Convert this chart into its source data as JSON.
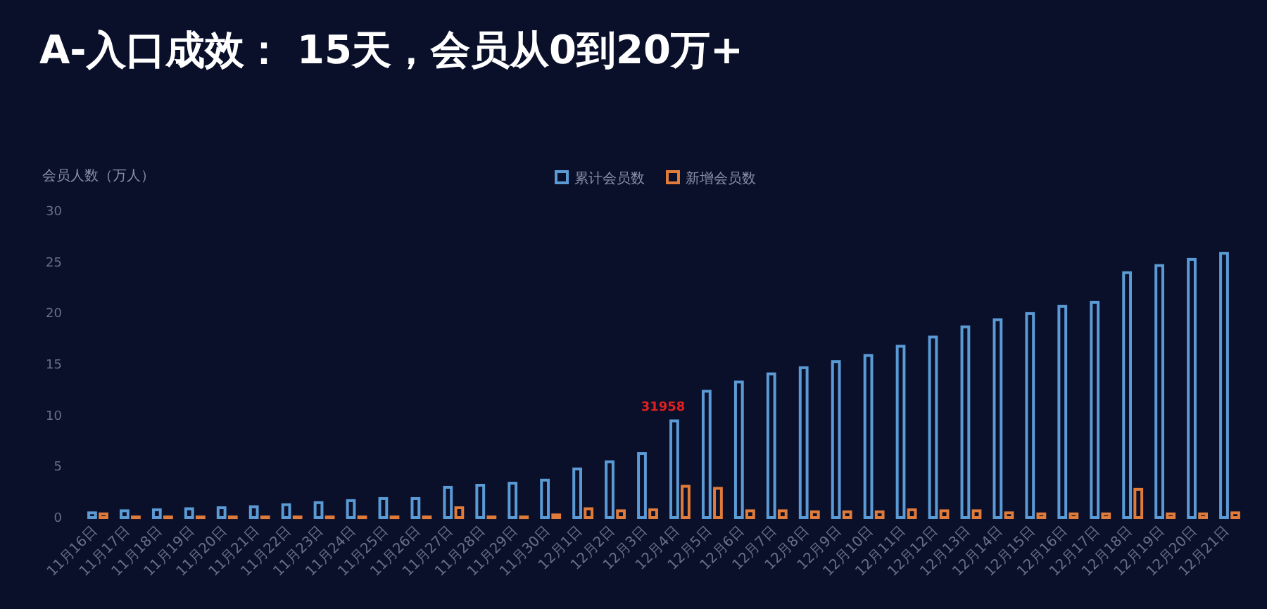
{
  "chart_data": {
    "type": "bar",
    "title": "A-入口成效： 15天，会员从0到20万+",
    "ylabel": "会员人数（万人）",
    "categories": [
      "11月16日",
      "11月17日",
      "11月18日",
      "11月19日",
      "11月20日",
      "11月21日",
      "11月22日",
      "11月23日",
      "11月24日",
      "11月25日",
      "11月26日",
      "11月27日",
      "11月28日",
      "11月29日",
      "11月30日",
      "12月1日",
      "12月2日",
      "12月3日",
      "12月4日",
      "12月5日",
      "12月6日",
      "12月7日",
      "12月8日",
      "12月9日",
      "12月10日",
      "12月11日",
      "12月12日",
      "12月13日",
      "12月14日",
      "12月15日",
      "12月16日",
      "12月17日",
      "12月18日",
      "12月19日",
      "12月20日",
      "12月21日"
    ],
    "series": [
      {
        "name": "累计会员数",
        "color": "#5b9bd5",
        "values": [
          0.6,
          0.8,
          0.9,
          1.0,
          1.1,
          1.2,
          1.4,
          1.6,
          1.8,
          2.0,
          2.0,
          3.1,
          3.3,
          3.5,
          3.8,
          4.9,
          5.6,
          6.4,
          9.6,
          12.5,
          13.4,
          14.2,
          14.8,
          15.4,
          16.0,
          16.9,
          17.8,
          18.8,
          19.5,
          20.1,
          20.8,
          21.2,
          24.1,
          24.8,
          25.4,
          26.0
        ]
      },
      {
        "name": "新增会员数",
        "color": "#e07b39",
        "values": [
          0.5,
          0.2,
          0.2,
          0.2,
          0.2,
          0.2,
          0.2,
          0.2,
          0.2,
          0.2,
          0.2,
          1.1,
          0.2,
          0.2,
          0.4,
          1.0,
          0.8,
          0.9,
          3.2,
          3.0,
          0.8,
          0.8,
          0.7,
          0.7,
          0.7,
          0.9,
          0.8,
          0.8,
          0.6,
          0.5,
          0.5,
          0.5,
          2.9,
          0.5,
          0.5,
          0.6
        ]
      }
    ],
    "ylim": [
      0,
      30
    ],
    "yticks": [
      0,
      5,
      10,
      15,
      20,
      25,
      30
    ],
    "grid": false,
    "legend": "top",
    "annotations": [
      "31958"
    ]
  }
}
